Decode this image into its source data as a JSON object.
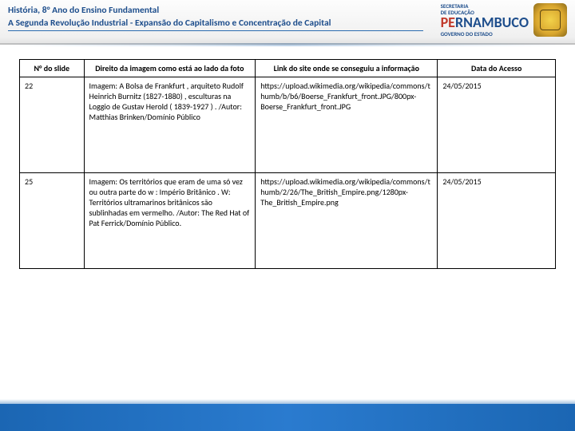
{
  "header": {
    "line1": "História, 8° Ano do Ensino Fundamental",
    "line2": "A Segunda Revolução Industrial - Expansão do Capitalismo e Concentração de Capital",
    "logo": {
      "top": "SECRETARIA",
      "mid": "DE EDUCAÇÃO",
      "brand_prefix": "PE",
      "brand_suffix": "RNAMBUCO",
      "gov": "GOVERNO DO ESTADO"
    }
  },
  "table": {
    "headers": {
      "num": "N° do slide",
      "direito": "Direito da imagem como está ao lado da foto",
      "link": "Link do site onde se conseguiu a informação",
      "data": "Data do Acesso"
    },
    "rows": [
      {
        "num": "22",
        "direito": "Imagem: A Bolsa de Frankfurt , arquiteto Rudolf Heinrich Burnitz (1827-1880) , esculturas na Loggio de Gustav Herold ( 1839-1927 ) . /Autor: Matthias Brinken/Domínio Público",
        "link": "https://upload.wikimedia.org/wikipedia/commons/thumb/b/b6/Boerse_Frankfurt_front.JPG/800px-Boerse_Frankfurt_front.JPG",
        "data": "24/05/2015"
      },
      {
        "num": "25",
        "direito": "Imagem: Os territórios que eram de uma só vez ou outra parte do w : Império Britânico . W: Territórios ultramarinos britânicos são sublinhadas em vermelho. /Autor: The Red Hat of Pat Ferrick/Domínio Público.",
        "link": "https://upload.wikimedia.org/wikipedia/commons/thumb/2/26/The_British_Empire.png/1280px-The_British_Empire.png",
        "data": "24/05/2015"
      }
    ]
  }
}
